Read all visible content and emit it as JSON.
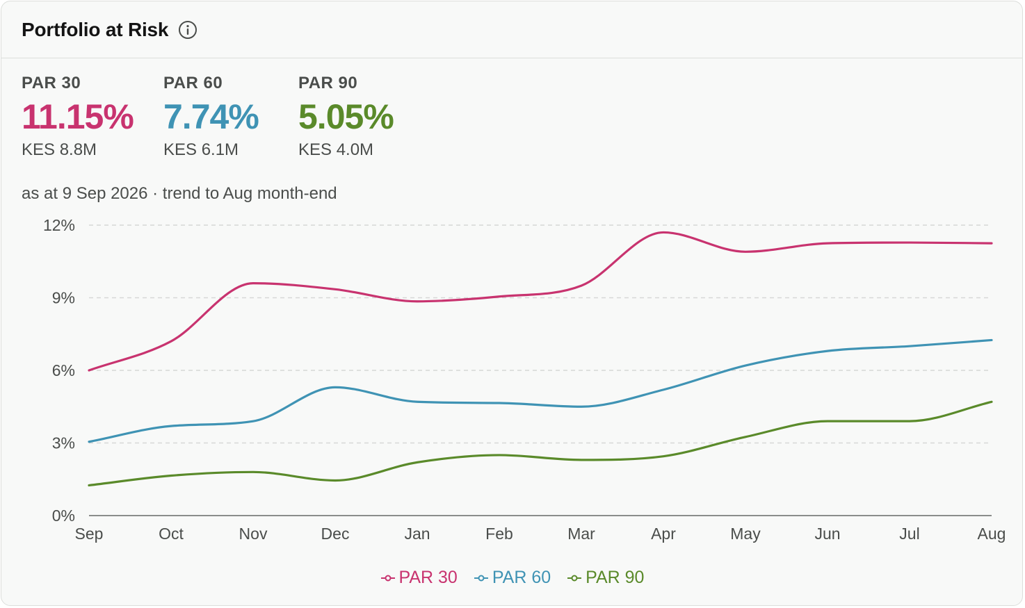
{
  "card": {
    "title": "Portfolio at Risk",
    "info_icon": "info-circle-icon",
    "subtitle": "as at 9 Sep 2026 · trend to Aug month-end"
  },
  "kpis": [
    {
      "label": "PAR 30",
      "value": "11.15%",
      "amount": "KES 8.8M",
      "color": "#c8336f"
    },
    {
      "label": "PAR 60",
      "value": "7.74%",
      "amount": "KES 6.1M",
      "color": "#3f93b4"
    },
    {
      "label": "PAR 90",
      "value": "5.05%",
      "amount": "KES 4.0M",
      "color": "#5a8a2a"
    }
  ],
  "chart_data": {
    "type": "line",
    "categories": [
      "Sep",
      "Oct",
      "Nov",
      "Dec",
      "Jan",
      "Feb",
      "Mar",
      "Apr",
      "May",
      "Jun",
      "Jul",
      "Aug"
    ],
    "y_ticks": [
      "0%",
      "3%",
      "6%",
      "9%",
      "12%"
    ],
    "y_tick_values": [
      0,
      3,
      6,
      9,
      12
    ],
    "ylim": [
      0,
      12
    ],
    "grid": true,
    "legend_position": "bottom-center",
    "series": [
      {
        "name": "PAR 30",
        "color": "#c8336f",
        "values": [
          6.0,
          7.2,
          9.6,
          9.35,
          8.85,
          9.05,
          9.5,
          11.7,
          10.9,
          11.25,
          11.28,
          11.25
        ]
      },
      {
        "name": "PAR 60",
        "color": "#3f93b4",
        "values": [
          3.05,
          3.7,
          3.9,
          5.3,
          4.7,
          4.65,
          4.5,
          5.2,
          6.2,
          6.8,
          7.0,
          7.25
        ]
      },
      {
        "name": "PAR 90",
        "color": "#5a8a2a",
        "values": [
          1.25,
          1.65,
          1.8,
          1.45,
          2.2,
          2.5,
          2.3,
          2.45,
          3.25,
          3.9,
          3.9,
          4.7
        ]
      }
    ]
  }
}
